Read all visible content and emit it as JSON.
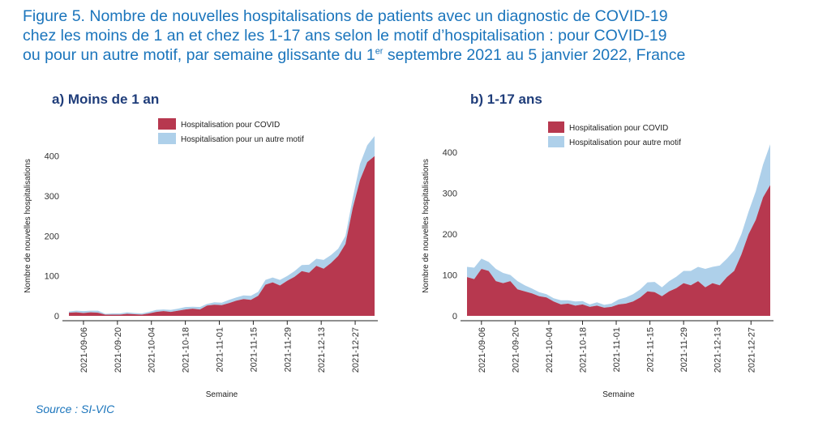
{
  "title": {
    "line1": "Figure 5. Nombre de nouvelles hospitalisations de patients avec un diagnostic de COVID-19",
    "line2": "chez les moins de 1 an et chez les 1-17 ans selon le motif d’hospitalisation : pour COVID-19",
    "line3_a": "ou pour un autre motif, par semaine glissante du 1",
    "line3_sup": "er",
    "line3_b": " septembre 2021 au 5 janvier 2022, France"
  },
  "source": "Source : SI-VIC",
  "colors": {
    "covid": "#b7384f",
    "other": "#aed0ea",
    "title": "#1b75bc",
    "panel_label": "#1f3d7a"
  },
  "chart_data": [
    {
      "type": "area",
      "stacked": true,
      "panel_label": "a)   Moins de 1 an",
      "xlabel": "Semaine",
      "ylabel": "Nombre de nouvelles hospitalisations",
      "ylim": [
        0,
        450
      ],
      "yticks": [
        0,
        100,
        200,
        300,
        400
      ],
      "x_range": [
        "2021-08-31",
        "2022-01-04"
      ],
      "xtick_labels": [
        "2021-09-06",
        "2021-09-20",
        "2021-10-04",
        "2021-10-18",
        "2021-11-01",
        "2021-11-15",
        "2021-11-29",
        "2021-12-13",
        "2021-12-27"
      ],
      "legend": [
        "Hospitalisation pour COVID",
        "Hospitalisation pour un autre motif"
      ],
      "series": [
        {
          "name": "Hospitalisation pour COVID",
          "points": [
            [
              "2021-08-31",
              8
            ],
            [
              "2021-09-03",
              9
            ],
            [
              "2021-09-06",
              7
            ],
            [
              "2021-09-09",
              9
            ],
            [
              "2021-09-12",
              8
            ],
            [
              "2021-09-15",
              3
            ],
            [
              "2021-09-18",
              3
            ],
            [
              "2021-09-21",
              3
            ],
            [
              "2021-09-24",
              5
            ],
            [
              "2021-09-27",
              4
            ],
            [
              "2021-09-30",
              3
            ],
            [
              "2021-10-03",
              6
            ],
            [
              "2021-10-06",
              10
            ],
            [
              "2021-10-09",
              12
            ],
            [
              "2021-10-12",
              10
            ],
            [
              "2021-10-15",
              13
            ],
            [
              "2021-10-18",
              16
            ],
            [
              "2021-10-21",
              18
            ],
            [
              "2021-10-24",
              16
            ],
            [
              "2021-10-27",
              26
            ],
            [
              "2021-10-30",
              28
            ],
            [
              "2021-11-02",
              27
            ],
            [
              "2021-11-05",
              32
            ],
            [
              "2021-11-08",
              38
            ],
            [
              "2021-11-11",
              42
            ],
            [
              "2021-11-14",
              40
            ],
            [
              "2021-11-17",
              50
            ],
            [
              "2021-11-20",
              78
            ],
            [
              "2021-11-23",
              84
            ],
            [
              "2021-11-26",
              76
            ],
            [
              "2021-11-29",
              88
            ],
            [
              "2021-12-02",
              98
            ],
            [
              "2021-12-05",
              112
            ],
            [
              "2021-12-08",
              108
            ],
            [
              "2021-12-11",
              125
            ],
            [
              "2021-12-14",
              118
            ],
            [
              "2021-12-17",
              132
            ],
            [
              "2021-12-20",
              150
            ],
            [
              "2021-12-23",
              180
            ],
            [
              "2021-12-26",
              270
            ],
            [
              "2021-12-29",
              340
            ],
            [
              "2022-01-01",
              385
            ],
            [
              "2022-01-04",
              400
            ]
          ]
        },
        {
          "name": "Hospitalisation pour un autre motif",
          "points": [
            [
              "2021-08-31",
              3
            ],
            [
              "2021-09-03",
              4
            ],
            [
              "2021-09-06",
              5
            ],
            [
              "2021-09-09",
              4
            ],
            [
              "2021-09-12",
              5
            ],
            [
              "2021-09-15",
              2
            ],
            [
              "2021-09-18",
              3
            ],
            [
              "2021-09-21",
              3
            ],
            [
              "2021-09-24",
              4
            ],
            [
              "2021-09-27",
              3
            ],
            [
              "2021-09-30",
              3
            ],
            [
              "2021-10-03",
              4
            ],
            [
              "2021-10-06",
              5
            ],
            [
              "2021-10-09",
              4
            ],
            [
              "2021-10-12",
              5
            ],
            [
              "2021-10-15",
              5
            ],
            [
              "2021-10-18",
              6
            ],
            [
              "2021-10-21",
              5
            ],
            [
              "2021-10-24",
              6
            ],
            [
              "2021-10-27",
              4
            ],
            [
              "2021-10-30",
              6
            ],
            [
              "2021-11-02",
              6
            ],
            [
              "2021-11-05",
              8
            ],
            [
              "2021-11-08",
              8
            ],
            [
              "2021-11-11",
              9
            ],
            [
              "2021-11-14",
              10
            ],
            [
              "2021-11-17",
              10
            ],
            [
              "2021-11-20",
              12
            ],
            [
              "2021-11-23",
              12
            ],
            [
              "2021-11-26",
              14
            ],
            [
              "2021-11-29",
              12
            ],
            [
              "2021-12-02",
              14
            ],
            [
              "2021-12-05",
              15
            ],
            [
              "2021-12-08",
              20
            ],
            [
              "2021-12-11",
              18
            ],
            [
              "2021-12-14",
              22
            ],
            [
              "2021-12-17",
              20
            ],
            [
              "2021-12-20",
              18
            ],
            [
              "2021-12-23",
              20
            ],
            [
              "2021-12-26",
              25
            ],
            [
              "2021-12-29",
              40
            ],
            [
              "2022-01-01",
              42
            ],
            [
              "2022-01-04",
              50
            ]
          ]
        }
      ]
    },
    {
      "type": "area",
      "stacked": true,
      "panel_label": "b) 1-17 ans",
      "xlabel": "Semaine",
      "ylabel": "Nombre de nouvelles hospitalisations",
      "ylim": [
        0,
        440
      ],
      "yticks": [
        0,
        100,
        200,
        300,
        400
      ],
      "x_range": [
        "2021-08-31",
        "2022-01-04"
      ],
      "xtick_labels": [
        "2021-09-06",
        "2021-09-20",
        "2021-10-04",
        "2021-10-18",
        "2021-11-01",
        "2021-11-15",
        "2021-11-29",
        "2021-12-13",
        "2021-12-27"
      ],
      "legend": [
        "Hospitalisation pour COVID",
        "Hospitalisation pour autre motif"
      ],
      "series": [
        {
          "name": "Hospitalisation pour COVID",
          "points": [
            [
              "2021-08-31",
              95
            ],
            [
              "2021-09-03",
              90
            ],
            [
              "2021-09-06",
              115
            ],
            [
              "2021-09-09",
              110
            ],
            [
              "2021-09-12",
              85
            ],
            [
              "2021-09-15",
              80
            ],
            [
              "2021-09-18",
              85
            ],
            [
              "2021-09-21",
              65
            ],
            [
              "2021-09-24",
              60
            ],
            [
              "2021-09-27",
              55
            ],
            [
              "2021-09-30",
              48
            ],
            [
              "2021-10-03",
              45
            ],
            [
              "2021-10-06",
              35
            ],
            [
              "2021-10-09",
              28
            ],
            [
              "2021-10-12",
              30
            ],
            [
              "2021-10-15",
              25
            ],
            [
              "2021-10-18",
              28
            ],
            [
              "2021-10-21",
              22
            ],
            [
              "2021-10-24",
              25
            ],
            [
              "2021-10-27",
              20
            ],
            [
              "2021-10-30",
              22
            ],
            [
              "2021-11-02",
              28
            ],
            [
              "2021-11-05",
              30
            ],
            [
              "2021-11-08",
              35
            ],
            [
              "2021-11-11",
              45
            ],
            [
              "2021-11-14",
              60
            ],
            [
              "2021-11-17",
              58
            ],
            [
              "2021-11-20",
              48
            ],
            [
              "2021-11-23",
              60
            ],
            [
              "2021-11-26",
              68
            ],
            [
              "2021-11-29",
              80
            ],
            [
              "2021-12-02",
              75
            ],
            [
              "2021-12-05",
              85
            ],
            [
              "2021-12-08",
              70
            ],
            [
              "2021-12-11",
              80
            ],
            [
              "2021-12-14",
              75
            ],
            [
              "2021-12-17",
              95
            ],
            [
              "2021-12-20",
              110
            ],
            [
              "2021-12-23",
              150
            ],
            [
              "2021-12-26",
              200
            ],
            [
              "2021-12-29",
              235
            ],
            [
              "2022-01-01",
              290
            ],
            [
              "2022-01-04",
              320
            ]
          ]
        },
        {
          "name": "Hospitalisation pour autre motif",
          "points": [
            [
              "2021-08-31",
              25
            ],
            [
              "2021-09-03",
              28
            ],
            [
              "2021-09-06",
              25
            ],
            [
              "2021-09-09",
              22
            ],
            [
              "2021-09-12",
              30
            ],
            [
              "2021-09-15",
              25
            ],
            [
              "2021-09-18",
              15
            ],
            [
              "2021-09-21",
              20
            ],
            [
              "2021-09-24",
              15
            ],
            [
              "2021-09-27",
              12
            ],
            [
              "2021-09-30",
              10
            ],
            [
              "2021-10-03",
              8
            ],
            [
              "2021-10-06",
              8
            ],
            [
              "2021-10-09",
              10
            ],
            [
              "2021-10-12",
              8
            ],
            [
              "2021-10-15",
              10
            ],
            [
              "2021-10-18",
              8
            ],
            [
              "2021-10-21",
              6
            ],
            [
              "2021-10-24",
              8
            ],
            [
              "2021-10-27",
              7
            ],
            [
              "2021-10-30",
              8
            ],
            [
              "2021-11-02",
              12
            ],
            [
              "2021-11-05",
              15
            ],
            [
              "2021-11-08",
              18
            ],
            [
              "2021-11-11",
              20
            ],
            [
              "2021-11-14",
              22
            ],
            [
              "2021-11-17",
              25
            ],
            [
              "2021-11-20",
              22
            ],
            [
              "2021-11-23",
              25
            ],
            [
              "2021-11-26",
              28
            ],
            [
              "2021-11-29",
              30
            ],
            [
              "2021-12-02",
              35
            ],
            [
              "2021-12-05",
              35
            ],
            [
              "2021-12-08",
              45
            ],
            [
              "2021-12-11",
              40
            ],
            [
              "2021-12-14",
              48
            ],
            [
              "2021-12-17",
              45
            ],
            [
              "2021-12-20",
              50
            ],
            [
              "2021-12-23",
              50
            ],
            [
              "2021-12-26",
              55
            ],
            [
              "2021-12-29",
              70
            ],
            [
              "2022-01-01",
              80
            ],
            [
              "2022-01-04",
              100
            ]
          ]
        }
      ]
    }
  ]
}
